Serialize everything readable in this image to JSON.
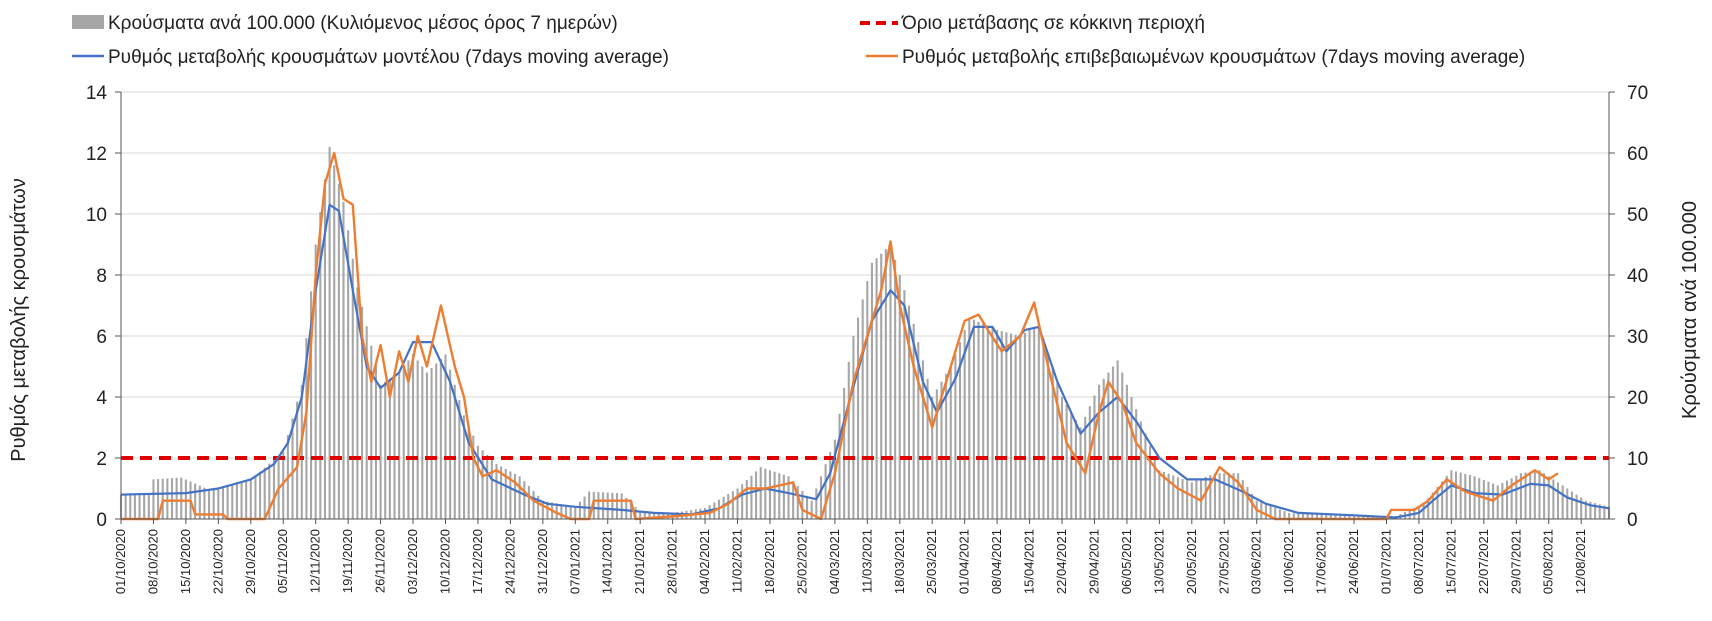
{
  "chart_data": {
    "type": "bar+line",
    "legend": [
      {
        "name": "Κρούσματα ανά 100.000 (Κυλιόμενος μέσος όρος 7 ημερών)",
        "kind": "bar",
        "color": "#a6a6a6"
      },
      {
        "name": "Όριο μετάβασης σε κόκκινη περιοχή",
        "kind": "dashed-line",
        "color": "#e00000"
      },
      {
        "name": "Ρυθμός μεταβολής κρουσμάτων μοντέλου (7days moving average)",
        "kind": "line",
        "color": "#4472c4"
      },
      {
        "name": "Ρυθμός μεταβολής επιβεβαιωμένων κρουσμάτων (7days moving average)",
        "kind": "line",
        "color": "#ed7d31"
      }
    ],
    "ylabel_left": "Ρυθμός μεταβολής κρουσμάτων",
    "ylabel_right": "Κρούσματα ανά 100.000",
    "y_left_range": [
      0,
      14
    ],
    "y_left_ticks": [
      "0",
      "2",
      "4",
      "6",
      "8",
      "10",
      "12",
      "14"
    ],
    "y_right_range": [
      0,
      70
    ],
    "y_right_ticks": [
      "0",
      "10",
      "20",
      "30",
      "40",
      "50",
      "60",
      "70"
    ],
    "x_start": "2020-10-01",
    "x_end": "2021-08-18",
    "x_tick_labels": [
      "01/10/2020",
      "08/10/2020",
      "15/10/2020",
      "22/10/2020",
      "29/10/2020",
      "05/11/2020",
      "12/11/2020",
      "19/11/2020",
      "26/11/2020",
      "03/12/2020",
      "10/12/2020",
      "17/12/2020",
      "24/12/2020",
      "31/12/2020",
      "07/01/2021",
      "14/01/2021",
      "21/01/2021",
      "28/01/2021",
      "04/02/2021",
      "11/02/2021",
      "18/02/2021",
      "25/02/2021",
      "04/03/2021",
      "11/03/2021",
      "18/03/2021",
      "25/03/2021",
      "01/04/2021",
      "08/04/2021",
      "15/04/2021",
      "22/04/2021",
      "29/04/2021",
      "06/05/2021",
      "13/05/2021",
      "20/05/2021",
      "27/05/2021",
      "03/06/2021",
      "10/06/2021",
      "17/06/2021",
      "24/06/2021",
      "01/07/2021",
      "08/07/2021",
      "15/07/2021",
      "22/07/2021",
      "29/07/2021",
      "05/08/2021",
      "12/08/2021"
    ],
    "threshold_left": 2,
    "series": [
      {
        "name": "Κρούσματα ανά 100.000 (Κυλιόμενος μέσος όρος 7 ημερών)",
        "axis": "right",
        "points": [
          [
            "2020-10-01",
            4
          ],
          [
            "2020-10-07",
            4.2
          ],
          [
            "2020-10-08",
            6.5
          ],
          [
            "2020-10-14",
            6.8
          ],
          [
            "2020-10-20",
            4.8
          ],
          [
            "2020-10-29",
            6.5
          ],
          [
            "2020-11-05",
            11
          ],
          [
            "2020-11-09",
            22
          ],
          [
            "2020-11-12",
            45
          ],
          [
            "2020-11-15",
            61
          ],
          [
            "2020-11-18",
            52
          ],
          [
            "2020-11-21",
            38
          ],
          [
            "2020-11-26",
            22
          ],
          [
            "2020-11-30",
            24
          ],
          [
            "2020-12-03",
            27
          ],
          [
            "2020-12-06",
            24
          ],
          [
            "2020-12-10",
            27
          ],
          [
            "2020-12-14",
            17
          ],
          [
            "2020-12-17",
            12
          ],
          [
            "2020-12-21",
            9
          ],
          [
            "2020-12-26",
            7
          ],
          [
            "2020-12-31",
            3
          ],
          [
            "2021-01-07",
            2
          ],
          [
            "2021-01-10",
            4.5
          ],
          [
            "2021-01-17",
            4.2
          ],
          [
            "2021-01-21",
            1.2
          ],
          [
            "2021-01-28",
            1
          ],
          [
            "2021-02-04",
            1.8
          ],
          [
            "2021-02-11",
            5
          ],
          [
            "2021-02-16",
            8.5
          ],
          [
            "2021-02-22",
            7
          ],
          [
            "2021-02-27",
            3
          ],
          [
            "2021-03-04",
            13
          ],
          [
            "2021-03-08",
            30
          ],
          [
            "2021-03-12",
            42
          ],
          [
            "2021-03-16",
            45
          ],
          [
            "2021-03-20",
            35
          ],
          [
            "2021-03-25",
            20
          ],
          [
            "2021-03-29",
            25
          ],
          [
            "2021-04-02",
            33
          ],
          [
            "2021-04-08",
            31
          ],
          [
            "2021-04-13",
            30
          ],
          [
            "2021-04-17",
            32
          ],
          [
            "2021-04-22",
            20
          ],
          [
            "2021-04-26",
            15
          ],
          [
            "2021-04-30",
            22
          ],
          [
            "2021-05-04",
            26
          ],
          [
            "2021-05-08",
            18
          ],
          [
            "2021-05-13",
            8
          ],
          [
            "2021-05-20",
            6
          ],
          [
            "2021-05-25",
            7.5
          ],
          [
            "2021-05-30",
            7.5
          ],
          [
            "2021-06-03",
            3
          ],
          [
            "2021-06-10",
            1
          ],
          [
            "2021-06-24",
            0.5
          ],
          [
            "2021-07-03",
            0.5
          ],
          [
            "2021-07-09",
            2.5
          ],
          [
            "2021-07-15",
            8
          ],
          [
            "2021-07-20",
            7
          ],
          [
            "2021-07-25",
            5.5
          ],
          [
            "2021-07-30",
            7.5
          ],
          [
            "2021-08-03",
            8
          ],
          [
            "2021-08-08",
            5.5
          ],
          [
            "2021-08-13",
            3
          ],
          [
            "2021-08-18",
            2
          ]
        ]
      },
      {
        "name": "Ρυθμός μεταβολής κρουσμάτων μοντέλου (7days moving average)",
        "axis": "left",
        "points": [
          [
            "2020-10-01",
            0.8
          ],
          [
            "2020-10-15",
            0.85
          ],
          [
            "2020-10-22",
            1
          ],
          [
            "2020-10-29",
            1.3
          ],
          [
            "2020-11-03",
            1.8
          ],
          [
            "2020-11-06",
            2.5
          ],
          [
            "2020-11-09",
            4
          ],
          [
            "2020-11-12",
            7.5
          ],
          [
            "2020-11-15",
            10.3
          ],
          [
            "2020-11-17",
            10.1
          ],
          [
            "2020-11-20",
            7.5
          ],
          [
            "2020-11-23",
            5
          ],
          [
            "2020-11-26",
            4.3
          ],
          [
            "2020-11-30",
            4.8
          ],
          [
            "2020-12-03",
            5.8
          ],
          [
            "2020-12-07",
            5.8
          ],
          [
            "2020-12-11",
            4.5
          ],
          [
            "2020-12-15",
            2.5
          ],
          [
            "2020-12-20",
            1.3
          ],
          [
            "2020-12-27",
            0.8
          ],
          [
            "2021-01-01",
            0.5
          ],
          [
            "2021-01-07",
            0.4
          ],
          [
            "2021-01-17",
            0.3
          ],
          [
            "2021-01-24",
            0.2
          ],
          [
            "2021-02-01",
            0.15
          ],
          [
            "2021-02-07",
            0.35
          ],
          [
            "2021-02-12",
            0.8
          ],
          [
            "2021-02-17",
            1
          ],
          [
            "2021-02-22",
            0.85
          ],
          [
            "2021-02-28",
            0.65
          ],
          [
            "2021-03-03",
            1.5
          ],
          [
            "2021-03-07",
            3.8
          ],
          [
            "2021-03-12",
            6.5
          ],
          [
            "2021-03-16",
            7.5
          ],
          [
            "2021-03-19",
            7
          ],
          [
            "2021-03-23",
            4.5
          ],
          [
            "2021-03-26",
            3.5
          ],
          [
            "2021-03-30",
            4.6
          ],
          [
            "2021-04-03",
            6.3
          ],
          [
            "2021-04-07",
            6.3
          ],
          [
            "2021-04-10",
            5.5
          ],
          [
            "2021-04-14",
            6.2
          ],
          [
            "2021-04-17",
            6.3
          ],
          [
            "2021-04-21",
            4.5
          ],
          [
            "2021-04-26",
            2.8
          ],
          [
            "2021-04-30",
            3.5
          ],
          [
            "2021-05-04",
            4
          ],
          [
            "2021-05-08",
            3.2
          ],
          [
            "2021-05-13",
            2
          ],
          [
            "2021-05-19",
            1.3
          ],
          [
            "2021-05-25",
            1.3
          ],
          [
            "2021-05-31",
            0.9
          ],
          [
            "2021-06-05",
            0.5
          ],
          [
            "2021-06-12",
            0.2
          ],
          [
            "2021-06-24",
            0.12
          ],
          [
            "2021-07-03",
            0.05
          ],
          [
            "2021-07-08",
            0.2
          ],
          [
            "2021-07-11",
            0.6
          ],
          [
            "2021-07-15",
            1.1
          ],
          [
            "2021-07-20",
            0.85
          ],
          [
            "2021-07-26",
            0.8
          ],
          [
            "2021-08-01",
            1.15
          ],
          [
            "2021-08-05",
            1.1
          ],
          [
            "2021-08-09",
            0.7
          ],
          [
            "2021-08-14",
            0.45
          ],
          [
            "2021-08-18",
            0.35
          ]
        ]
      },
      {
        "name": "Ρυθμός μεταβολής επιβεβαιωμένων κρουσμάτων (7days moving average)",
        "axis": "left",
        "points": [
          [
            "2020-10-01",
            0
          ],
          [
            "2020-10-09",
            0
          ],
          [
            "2020-10-10",
            0.6
          ],
          [
            "2020-10-16",
            0.6
          ],
          [
            "2020-10-17",
            0.15
          ],
          [
            "2020-10-23",
            0.15
          ],
          [
            "2020-10-24",
            0
          ],
          [
            "2020-11-01",
            0
          ],
          [
            "2020-11-04",
            1
          ],
          [
            "2020-11-08",
            1.7
          ],
          [
            "2020-11-10",
            3.5
          ],
          [
            "2020-11-12",
            8
          ],
          [
            "2020-11-14",
            11
          ],
          [
            "2020-11-16",
            12
          ],
          [
            "2020-11-18",
            10.5
          ],
          [
            "2020-11-20",
            10.3
          ],
          [
            "2020-11-22",
            6
          ],
          [
            "2020-11-24",
            4.5
          ],
          [
            "2020-11-26",
            5.7
          ],
          [
            "2020-11-28",
            4
          ],
          [
            "2020-11-30",
            5.5
          ],
          [
            "2020-12-02",
            4.5
          ],
          [
            "2020-12-04",
            6
          ],
          [
            "2020-12-06",
            5
          ],
          [
            "2020-12-09",
            7
          ],
          [
            "2020-12-12",
            5
          ],
          [
            "2020-12-14",
            4
          ],
          [
            "2020-12-16",
            2
          ],
          [
            "2020-12-18",
            1.4
          ],
          [
            "2020-12-21",
            1.6
          ],
          [
            "2020-12-25",
            1.2
          ],
          [
            "2020-12-29",
            0.6
          ],
          [
            "2021-01-03",
            0.2
          ],
          [
            "2021-01-06",
            0
          ],
          [
            "2021-01-10",
            0
          ],
          [
            "2021-01-11",
            0.6
          ],
          [
            "2021-01-19",
            0.6
          ],
          [
            "2021-01-20",
            0
          ],
          [
            "2021-01-29",
            0.1
          ],
          [
            "2021-02-05",
            0.2
          ],
          [
            "2021-02-09",
            0.5
          ],
          [
            "2021-02-13",
            1
          ],
          [
            "2021-02-17",
            1
          ],
          [
            "2021-02-23",
            1.2
          ],
          [
            "2021-02-25",
            0.3
          ],
          [
            "2021-03-01",
            0
          ],
          [
            "2021-03-04",
            1.5
          ],
          [
            "2021-03-08",
            4.5
          ],
          [
            "2021-03-11",
            6
          ],
          [
            "2021-03-14",
            7.5
          ],
          [
            "2021-03-16",
            9.1
          ],
          [
            "2021-03-18",
            7
          ],
          [
            "2021-03-21",
            5
          ],
          [
            "2021-03-25",
            3
          ],
          [
            "2021-03-29",
            5
          ],
          [
            "2021-04-01",
            6.5
          ],
          [
            "2021-04-04",
            6.7
          ],
          [
            "2021-04-06",
            6.2
          ],
          [
            "2021-04-09",
            5.5
          ],
          [
            "2021-04-13",
            6
          ],
          [
            "2021-04-16",
            7.1
          ],
          [
            "2021-04-19",
            5
          ],
          [
            "2021-04-23",
            2.5
          ],
          [
            "2021-04-27",
            1.5
          ],
          [
            "2021-04-30",
            3.5
          ],
          [
            "2021-05-02",
            4.5
          ],
          [
            "2021-05-05",
            3.8
          ],
          [
            "2021-05-08",
            2.5
          ],
          [
            "2021-05-13",
            1.5
          ],
          [
            "2021-05-17",
            1
          ],
          [
            "2021-05-22",
            0.6
          ],
          [
            "2021-05-26",
            1.7
          ],
          [
            "2021-05-30",
            1.2
          ],
          [
            "2021-06-03",
            0.3
          ],
          [
            "2021-06-07",
            0
          ],
          [
            "2021-07-01",
            0
          ],
          [
            "2021-07-02",
            0.3
          ],
          [
            "2021-07-07",
            0.3
          ],
          [
            "2021-07-10",
            0.6
          ],
          [
            "2021-07-14",
            1.3
          ],
          [
            "2021-07-18",
            0.9
          ],
          [
            "2021-07-24",
            0.6
          ],
          [
            "2021-07-28",
            1.1
          ],
          [
            "2021-08-02",
            1.6
          ],
          [
            "2021-08-05",
            1.3
          ],
          [
            "2021-08-07",
            1.5
          ]
        ]
      }
    ]
  }
}
